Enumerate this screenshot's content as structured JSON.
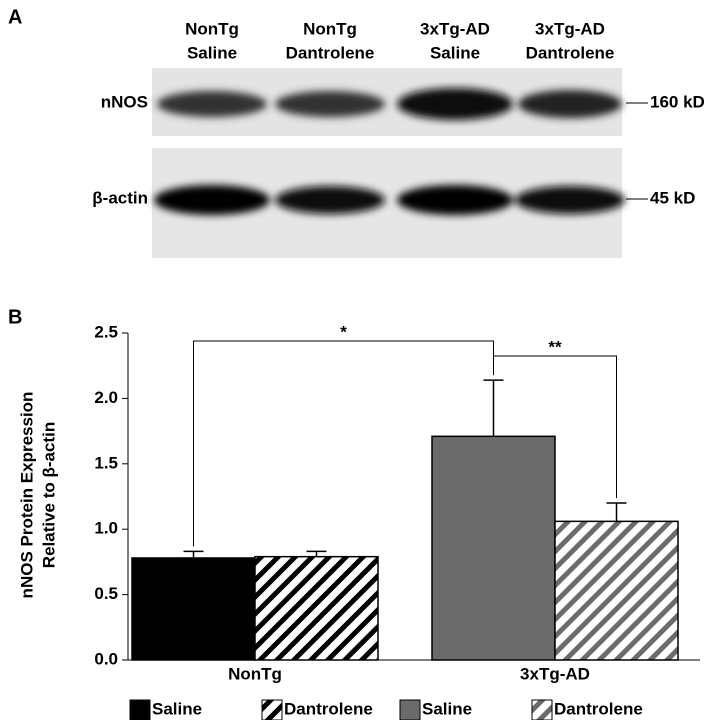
{
  "panel_a": {
    "label": "A",
    "lanes": [
      [
        "NonTg",
        "Saline"
      ],
      [
        "NonTg",
        "Dantrolene"
      ],
      [
        "3xTg-AD",
        "Saline"
      ],
      [
        "3xTg-AD",
        "Dantrolene"
      ]
    ],
    "rows": [
      {
        "protein": "nNOS",
        "size": "160 kD"
      },
      {
        "protein": "β-actin",
        "size": "45 kD"
      }
    ]
  },
  "chart_data": {
    "type": "bar",
    "panel_label": "B",
    "ylabel": [
      "nNOS Protein Expression",
      "Relative to β-actin"
    ],
    "categories": [
      "NonTg",
      "3xTg-AD"
    ],
    "series": [
      {
        "name": "Saline",
        "color": "#000000",
        "hatch": false,
        "values": [
          0.78,
          null
        ],
        "errors": [
          0.05,
          null
        ]
      },
      {
        "name": "Dantrolene",
        "color": "#000000",
        "hatch": true,
        "values": [
          0.79,
          null
        ],
        "errors": [
          0.04,
          null
        ]
      },
      {
        "name": "Saline",
        "color": "#6b6b6b",
        "hatch": false,
        "values": [
          null,
          1.71
        ],
        "errors": [
          null,
          0.43
        ]
      },
      {
        "name": "Dantrolene",
        "color": "#6b6b6b",
        "hatch": true,
        "values": [
          null,
          1.06
        ],
        "errors": [
          null,
          0.14
        ]
      }
    ],
    "ylim": [
      0,
      2.5
    ],
    "yticks": [
      {
        "value": 0,
        "label": "0.0"
      },
      {
        "value": 0.5,
        "label": "0.5"
      },
      {
        "value": 1,
        "label": "1.0"
      },
      {
        "value": 1.5,
        "label": "1.5"
      },
      {
        "value": 2,
        "label": "2.0"
      },
      {
        "value": 2.5,
        "label": "2.5"
      }
    ],
    "annotations": [
      "*",
      "**"
    ]
  }
}
